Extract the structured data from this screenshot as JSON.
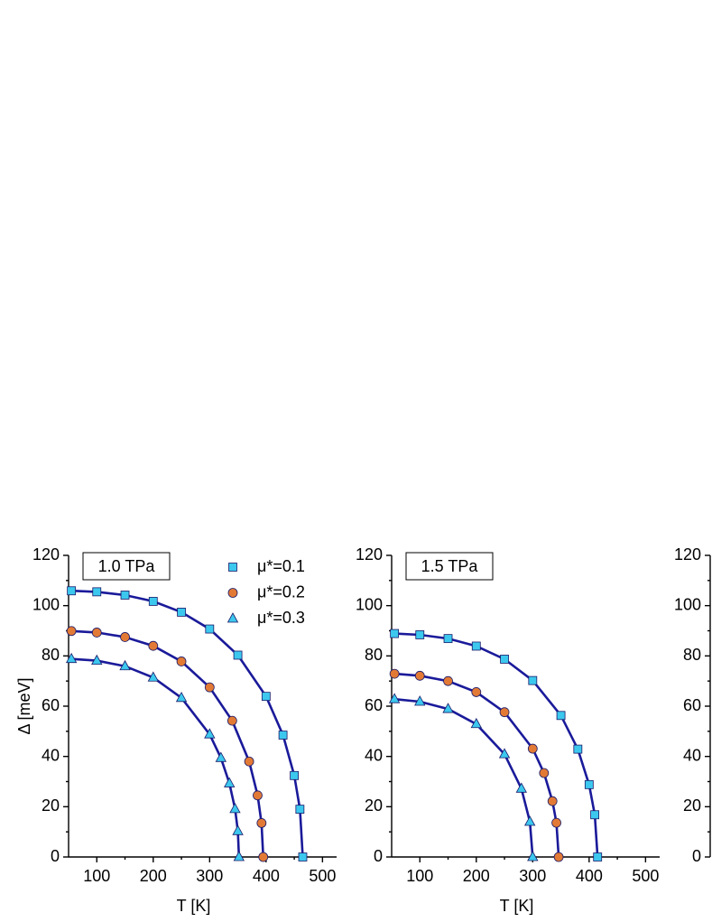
{
  "chart_data": [
    {
      "type": "scatter",
      "annotation": "1.0 TPa",
      "xlabel": "T [K]",
      "ylabel": "Δ [meV]",
      "xlim": [
        50,
        525
      ],
      "xticks": [
        100,
        200,
        300,
        400,
        500
      ],
      "ylim": [
        0,
        120
      ],
      "yticks": [
        0,
        20,
        40,
        60,
        80,
        100,
        120
      ],
      "legend": true,
      "line_color": "#1a1a9a",
      "series": [
        {
          "name": "μ*=0.1",
          "color": "#3cc8ee",
          "marker": "square",
          "x": [
            55,
            100,
            150,
            200,
            250,
            300,
            350,
            400,
            430,
            450,
            460,
            465
          ],
          "values": [
            105.9,
            105.5,
            104.2,
            101.7,
            97.4,
            90.7,
            80.3,
            63.9,
            48.5,
            32.4,
            19.0,
            0
          ]
        },
        {
          "name": "μ*=0.2",
          "color": "#e27a35",
          "marker": "circle",
          "x": [
            55,
            100,
            150,
            200,
            250,
            300,
            340,
            370,
            385,
            392,
            395
          ],
          "values": [
            89.9,
            89.3,
            87.5,
            84.0,
            77.8,
            67.5,
            54.2,
            38.0,
            24.5,
            13.5,
            0
          ]
        },
        {
          "name": "μ*=0.3",
          "color": "#3cc8ee",
          "marker": "triangle",
          "x": [
            55,
            100,
            150,
            200,
            250,
            300,
            320,
            335,
            345,
            350,
            352
          ],
          "values": [
            78.8,
            78.1,
            75.9,
            71.4,
            63.3,
            48.8,
            39.4,
            29.3,
            19.1,
            10.3,
            0
          ]
        }
      ]
    },
    {
      "type": "scatter",
      "annotation": "1.5 TPa",
      "xlabel": "T [K]",
      "xlim": [
        50,
        525
      ],
      "xticks": [
        100,
        200,
        300,
        400,
        500
      ],
      "ylim": [
        0,
        120
      ],
      "yticks": [
        0,
        20,
        40,
        60,
        80,
        100,
        120
      ],
      "legend": false,
      "line_color": "#1a1a9a",
      "series": [
        {
          "color": "#3cc8ee",
          "marker": "square",
          "x": [
            55,
            100,
            150,
            200,
            250,
            300,
            350,
            380,
            400,
            410,
            415
          ],
          "values": [
            88.9,
            88.4,
            86.9,
            83.9,
            78.7,
            70.2,
            56.3,
            42.9,
            28.8,
            16.8,
            0
          ]
        },
        {
          "color": "#e27a35",
          "marker": "circle",
          "x": [
            55,
            100,
            150,
            200,
            250,
            300,
            320,
            335,
            342,
            346
          ],
          "values": [
            72.9,
            72.1,
            70.0,
            65.6,
            57.6,
            43.1,
            33.4,
            22.2,
            13.6,
            0
          ]
        },
        {
          "color": "#3cc8ee",
          "marker": "triangle",
          "x": [
            55,
            100,
            150,
            200,
            250,
            280,
            295,
            300
          ],
          "values": [
            62.8,
            61.8,
            58.9,
            52.9,
            40.9,
            27.2,
            14.0,
            0
          ]
        }
      ]
    },
    {
      "type": "axis",
      "ylim": [
        0,
        120
      ],
      "yticks": [
        0,
        20,
        40,
        60,
        80,
        100,
        120
      ]
    }
  ]
}
